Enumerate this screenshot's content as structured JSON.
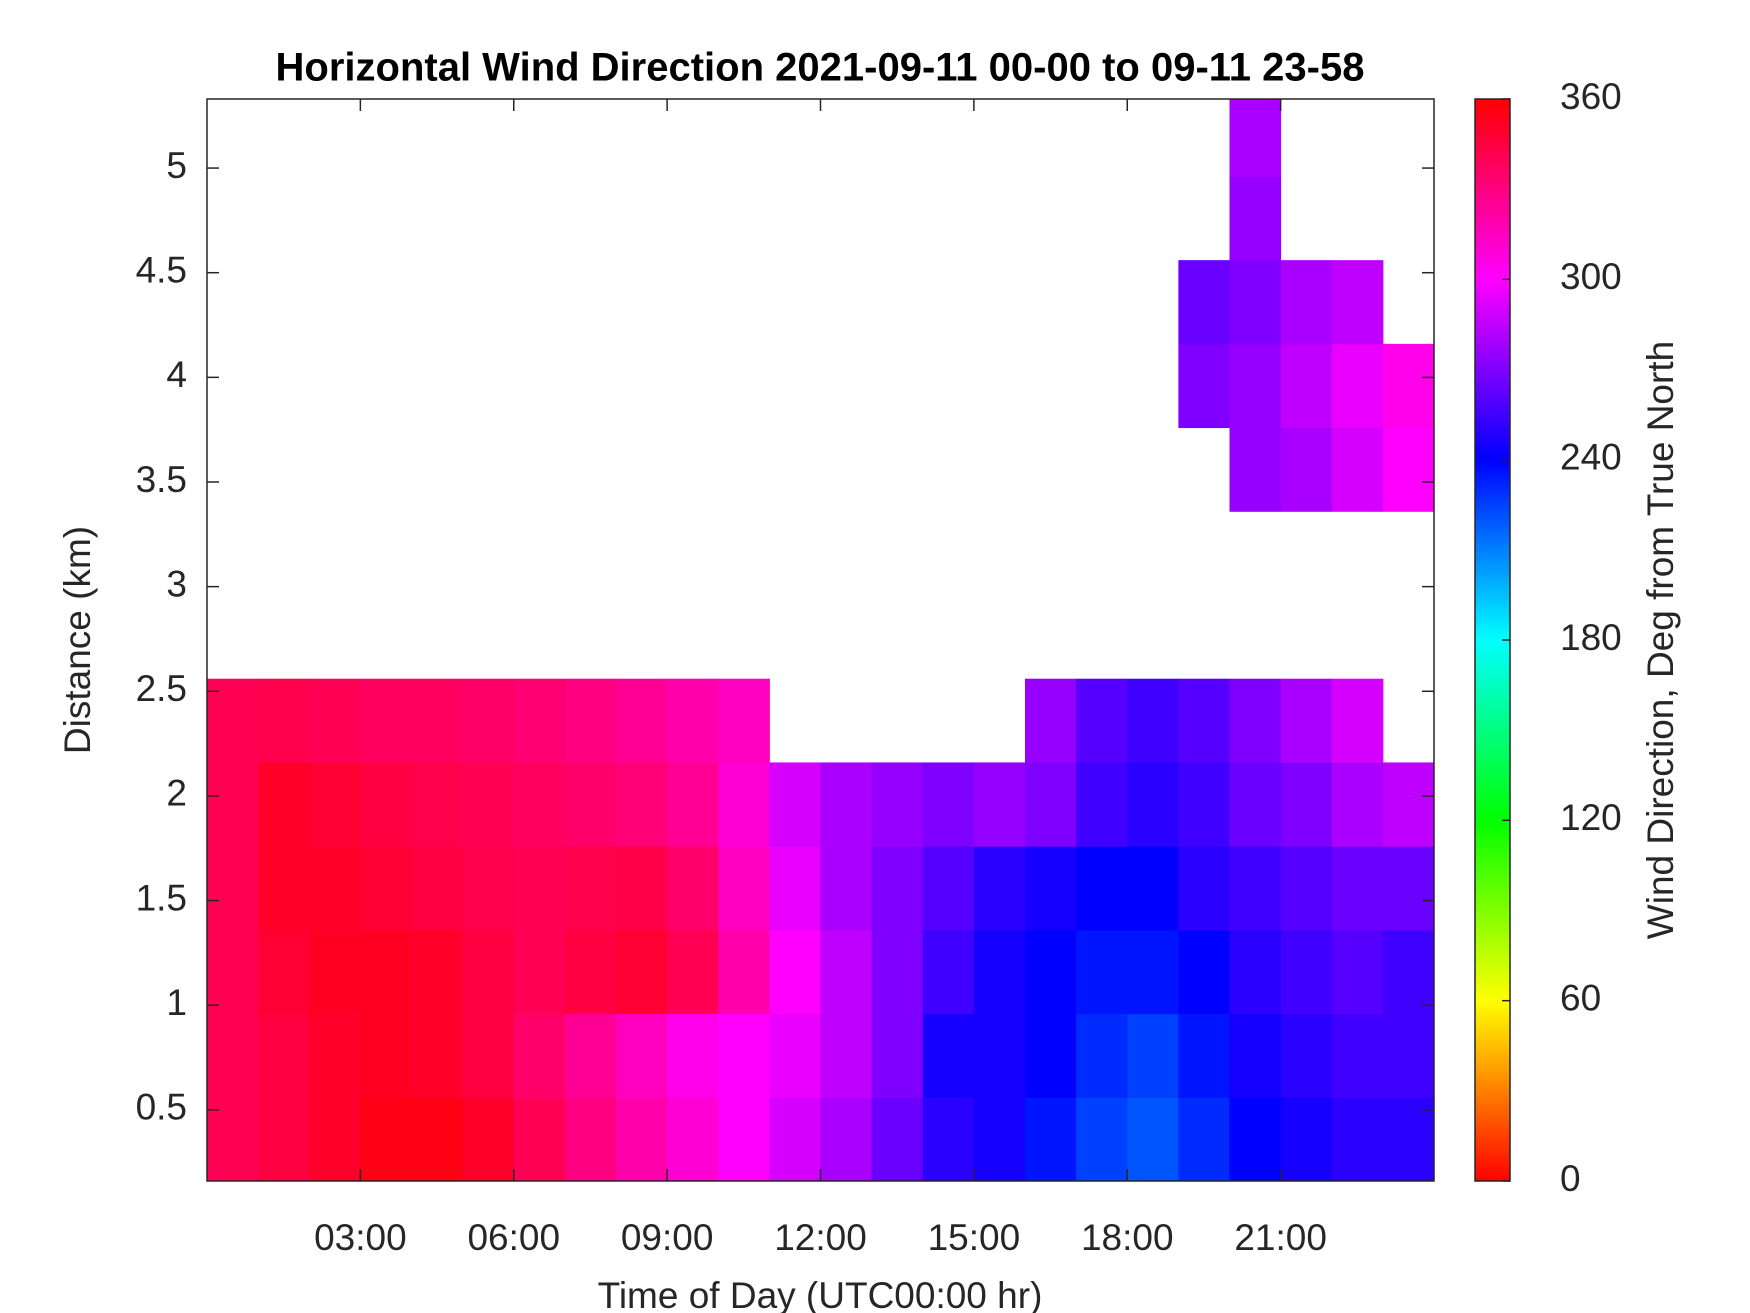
{
  "chart_data": {
    "type": "heatmap",
    "title": "Horizontal Wind Direction 2021-09-11 00-00 to 09-11 23-58",
    "xlabel": "Time of Day (UTC00:00 hr)",
    "ylabel": "Distance (km)",
    "colorbar_label": "Wind Direction, Deg from True North",
    "xlim": [
      0,
      24
    ],
    "xticks": [
      {
        "value": 3,
        "label": "03:00"
      },
      {
        "value": 6,
        "label": "06:00"
      },
      {
        "value": 9,
        "label": "09:00"
      },
      {
        "value": 12,
        "label": "12:00"
      },
      {
        "value": 15,
        "label": "15:00"
      },
      {
        "value": 18,
        "label": "18:00"
      },
      {
        "value": 21,
        "label": "21:00"
      }
    ],
    "ylim": [
      0.16,
      5.33
    ],
    "yticks": [
      0.5,
      1,
      1.5,
      2,
      2.5,
      3,
      3.5,
      4,
      4.5,
      5
    ],
    "clim": [
      0,
      360
    ],
    "cticks": [
      0,
      60,
      120,
      180,
      240,
      300,
      360
    ],
    "colormap": [
      "#ff0000",
      "#ffff00",
      "#00ff00",
      "#00ffff",
      "#0000ff",
      "#ff00ff",
      "#ff0000"
    ],
    "xbins": [
      0,
      1,
      2,
      3,
      4,
      5,
      6,
      7,
      8,
      9,
      10,
      11,
      12,
      13,
      14,
      15,
      16,
      17,
      18,
      19,
      20,
      21,
      22,
      23,
      24
    ],
    "ybins": [
      0.16,
      0.56,
      0.96,
      1.36,
      1.76,
      2.16,
      2.56,
      2.96,
      3.36,
      3.76,
      4.16,
      4.56,
      4.96,
      5.33
    ],
    "values": [
      [
        340,
        345,
        350,
        355,
        355,
        350,
        340,
        330,
        320,
        310,
        300,
        290,
        280,
        265,
        250,
        245,
        235,
        225,
        220,
        230,
        240,
        245,
        250,
        250
      ],
      [
        340,
        345,
        350,
        352,
        350,
        345,
        335,
        325,
        315,
        305,
        300,
        295,
        285,
        270,
        245,
        245,
        240,
        230,
        225,
        235,
        245,
        250,
        255,
        255
      ],
      [
        340,
        348,
        352,
        352,
        350,
        345,
        340,
        345,
        348,
        340,
        320,
        300,
        285,
        270,
        255,
        245,
        240,
        235,
        235,
        240,
        250,
        255,
        260,
        255
      ],
      [
        340,
        350,
        350,
        348,
        345,
        342,
        340,
        342,
        343,
        335,
        315,
        295,
        280,
        270,
        260,
        250,
        245,
        240,
        240,
        250,
        255,
        260,
        265,
        265
      ],
      [
        340,
        350,
        348,
        345,
        342,
        340,
        338,
        335,
        332,
        325,
        310,
        290,
        280,
        275,
        270,
        275,
        270,
        255,
        250,
        255,
        265,
        270,
        280,
        285
      ],
      [
        340,
        342,
        340,
        338,
        338,
        336,
        333,
        330,
        325,
        320,
        315,
        null,
        null,
        null,
        null,
        null,
        275,
        260,
        255,
        260,
        270,
        280,
        290,
        null
      ],
      [
        null,
        null,
        null,
        null,
        null,
        null,
        null,
        null,
        null,
        null,
        null,
        null,
        null,
        null,
        null,
        null,
        null,
        null,
        null,
        null,
        null,
        null,
        null,
        null
      ],
      [
        null,
        null,
        null,
        null,
        null,
        null,
        null,
        null,
        null,
        null,
        null,
        null,
        null,
        null,
        null,
        null,
        null,
        null,
        null,
        null,
        null,
        null,
        null,
        null
      ],
      [
        null,
        null,
        null,
        null,
        null,
        null,
        null,
        null,
        null,
        null,
        null,
        null,
        null,
        null,
        null,
        null,
        null,
        null,
        null,
        null,
        275,
        280,
        290,
        300
      ],
      [
        null,
        null,
        null,
        null,
        null,
        null,
        null,
        null,
        null,
        null,
        null,
        null,
        null,
        null,
        null,
        null,
        null,
        null,
        null,
        270,
        275,
        285,
        295,
        305
      ],
      [
        null,
        null,
        null,
        null,
        null,
        null,
        null,
        null,
        null,
        null,
        null,
        null,
        null,
        null,
        null,
        null,
        null,
        null,
        null,
        265,
        270,
        280,
        285,
        null
      ],
      [
        null,
        null,
        null,
        null,
        null,
        null,
        null,
        null,
        null,
        null,
        null,
        null,
        null,
        null,
        null,
        null,
        null,
        null,
        null,
        null,
        275,
        null,
        null,
        null
      ],
      [
        null,
        null,
        null,
        null,
        null,
        null,
        null,
        null,
        null,
        null,
        null,
        null,
        null,
        null,
        null,
        null,
        null,
        null,
        null,
        null,
        280,
        null,
        null,
        null
      ]
    ]
  }
}
